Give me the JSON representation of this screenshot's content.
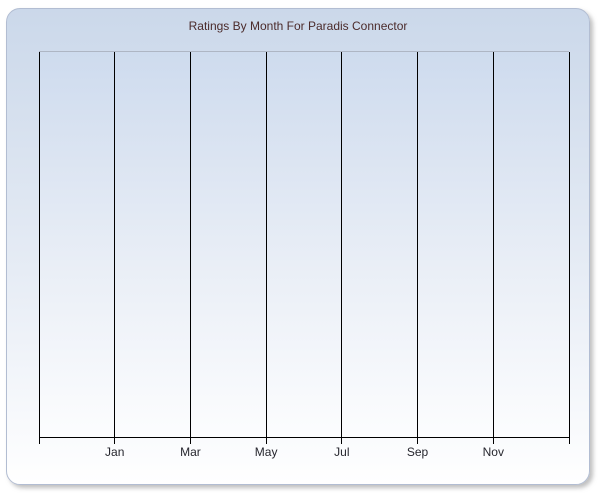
{
  "title": "Ratings By Month For Paradis Connector",
  "colors": {
    "title_text": "#4b2b2b",
    "axis_label_text": "#26262e",
    "gridline": "#000000",
    "plot_border_top": "#aeb6c4",
    "panel_border": "#b2bdd2",
    "panel_gradient_top": "#cbd8ea",
    "panel_gradient_bottom": "#ffffff",
    "plot_gradient_top": "#cedbee",
    "plot_gradient_bottom": "#fcfdfe"
  },
  "chart_data": {
    "type": "line",
    "title": "Ratings By Month For Paradis Connector",
    "x_tick_labels": [
      "Jan",
      "Mar",
      "May",
      "Jul",
      "Sep",
      "Nov"
    ],
    "x_gridline_count": 8,
    "labeled_gridline_indexes": [
      1,
      2,
      3,
      4,
      5,
      6
    ],
    "series": [],
    "y_axis": {
      "tick_labels": [],
      "label": ""
    },
    "grid": "vertical-only",
    "legend": "none"
  }
}
